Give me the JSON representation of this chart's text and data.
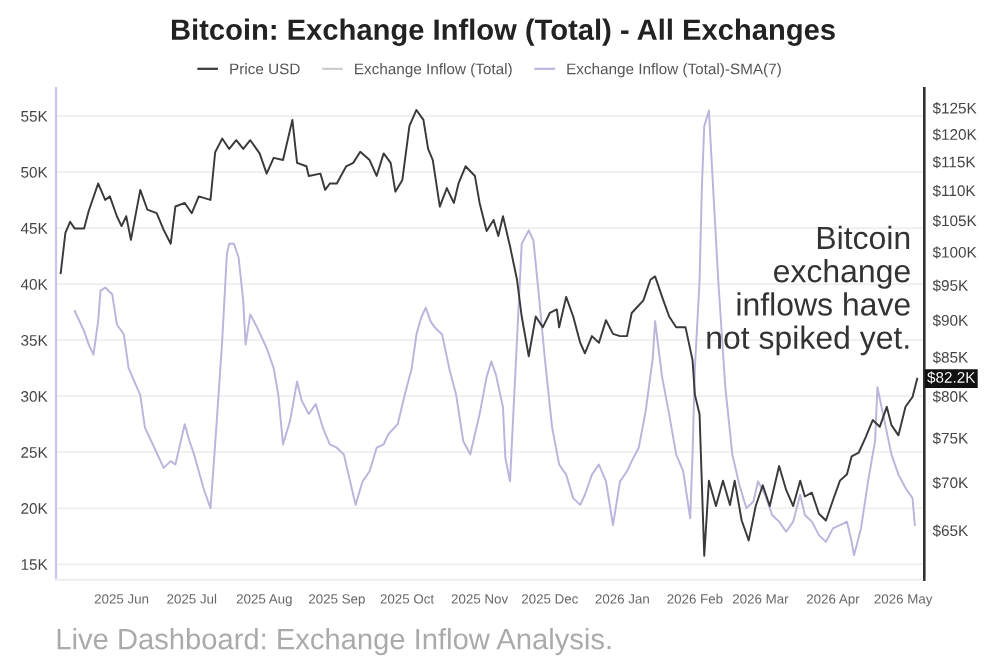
{
  "chart_data": {
    "type": "line",
    "title": "Bitcoin: Exchange Inflow (Total) - All Exchanges",
    "legend": "top",
    "grid": "y",
    "log": "y2",
    "line_style": "solid",
    "xlim": [
      "2025-05-04",
      "2026-05-10"
    ],
    "xticks": [
      {
        "value": "2025-06-01",
        "label": "2025 Jun"
      },
      {
        "value": "2025-07-01",
        "label": "2025 Jul"
      },
      {
        "value": "2025-08-01",
        "label": "2025 Aug"
      },
      {
        "value": "2025-09-01",
        "label": "2025 Sep"
      },
      {
        "value": "2025-10-01",
        "label": "2025 Oct"
      },
      {
        "value": "2025-11-01",
        "label": "2025 Nov"
      },
      {
        "value": "2025-12-01",
        "label": "2025 Dec"
      },
      {
        "value": "2026-01-01",
        "label": "2026 Jan"
      },
      {
        "value": "2026-02-01",
        "label": "2026 Feb"
      },
      {
        "value": "2026-03-01",
        "label": "2026 Mar"
      },
      {
        "value": "2026-04-01",
        "label": "2026 Apr"
      },
      {
        "value": "2026-05-01",
        "label": "2026 May"
      }
    ],
    "ylim": [
      13.6,
      57.5
    ],
    "yticks": [
      {
        "value": 15,
        "label": "15K"
      },
      {
        "value": 20,
        "label": "20K"
      },
      {
        "value": 25,
        "label": "25K"
      },
      {
        "value": 30,
        "label": "30K"
      },
      {
        "value": 35,
        "label": "35K"
      },
      {
        "value": 40,
        "label": "40K"
      },
      {
        "value": 45,
        "label": "45K"
      },
      {
        "value": 50,
        "label": "50K"
      },
      {
        "value": 55,
        "label": "55K"
      }
    ],
    "y2lim": [
      60.2,
      128.9
    ],
    "y2ticks": [
      {
        "value": 65,
        "label": "$65K"
      },
      {
        "value": 70,
        "label": "$70K"
      },
      {
        "value": 75,
        "label": "$75K"
      },
      {
        "value": 80,
        "label": "$80K"
      },
      {
        "value": 85,
        "label": "$85K"
      },
      {
        "value": 90,
        "label": "$90K"
      },
      {
        "value": 95,
        "label": "$95K"
      },
      {
        "value": 100,
        "label": "$100K"
      },
      {
        "value": 105,
        "label": "$105K"
      },
      {
        "value": 110,
        "label": "$110K"
      },
      {
        "value": 115,
        "label": "$115K"
      },
      {
        "value": 120,
        "label": "$120K"
      },
      {
        "value": 125,
        "label": "$125K"
      }
    ],
    "series": [
      {
        "name": "Price USD",
        "color": "#3a3a3a",
        "axis": "y2",
        "x": [
          "2025-05-06",
          "2025-05-08",
          "2025-05-10",
          "2025-05-12",
          "2025-05-16",
          "2025-05-18",
          "2025-05-22",
          "2025-05-25",
          "2025-05-27",
          "2025-05-30",
          "2025-06-01",
          "2025-06-03",
          "2025-06-05",
          "2025-06-09",
          "2025-06-12",
          "2025-06-16",
          "2025-06-19",
          "2025-06-22",
          "2025-06-24",
          "2025-06-28",
          "2025-07-01",
          "2025-07-04",
          "2025-07-09",
          "2025-07-11",
          "2025-07-14",
          "2025-07-17",
          "2025-07-20",
          "2025-07-23",
          "2025-07-26",
          "2025-07-30",
          "2025-08-02",
          "2025-08-05",
          "2025-08-09",
          "2025-08-13",
          "2025-08-15",
          "2025-08-19",
          "2025-08-20",
          "2025-08-25",
          "2025-08-27",
          "2025-08-29",
          "2025-09-01",
          "2025-09-05",
          "2025-09-08",
          "2025-09-11",
          "2025-09-15",
          "2025-09-18",
          "2025-09-21",
          "2025-09-24",
          "2025-09-26",
          "2025-09-29",
          "2025-10-02",
          "2025-10-05",
          "2025-10-08",
          "2025-10-10",
          "2025-10-12",
          "2025-10-15",
          "2025-10-18",
          "2025-10-21",
          "2025-10-23",
          "2025-10-26",
          "2025-10-30",
          "2025-11-01",
          "2025-11-04",
          "2025-11-07",
          "2025-11-09",
          "2025-11-11",
          "2025-11-14",
          "2025-11-17",
          "2025-11-19",
          "2025-11-22",
          "2025-11-25",
          "2025-11-28",
          "2025-12-01",
          "2025-12-04",
          "2025-12-05",
          "2025-12-08",
          "2025-12-11",
          "2025-12-14",
          "2025-12-16",
          "2025-12-19",
          "2025-12-22",
          "2025-12-25",
          "2025-12-28",
          "2025-12-31",
          "2026-01-03",
          "2026-01-05",
          "2026-01-10",
          "2026-01-13",
          "2026-01-15",
          "2026-01-18",
          "2026-01-21",
          "2026-01-24",
          "2026-01-28",
          "2026-01-31",
          "2026-02-01",
          "2026-02-03",
          "2026-02-05",
          "2026-02-07",
          "2026-02-10",
          "2026-02-13",
          "2026-02-16",
          "2026-02-18",
          "2026-02-21",
          "2026-02-24",
          "2026-02-27",
          "2026-03-02",
          "2026-03-05",
          "2026-03-09",
          "2026-03-12",
          "2026-03-15",
          "2026-03-18",
          "2026-03-20",
          "2026-03-23",
          "2026-03-26",
          "2026-03-29",
          "2026-04-01",
          "2026-04-04",
          "2026-04-07",
          "2026-04-09",
          "2026-04-12",
          "2026-04-15",
          "2026-04-18",
          "2026-04-21",
          "2026-04-24",
          "2026-04-26",
          "2026-04-29",
          "2026-05-02",
          "2026-05-05",
          "2026-05-07"
        ],
        "values": [
          96.8,
          103,
          104.8,
          103.7,
          103.7,
          106.6,
          111.2,
          108.4,
          109,
          105.7,
          104.1,
          105.7,
          101.9,
          110.1,
          106.8,
          106.2,
          103.5,
          101.3,
          107.3,
          107.9,
          106.2,
          109,
          108.4,
          116.7,
          119.2,
          117.3,
          118.9,
          117.3,
          118.9,
          116.5,
          112.9,
          115.7,
          115.3,
          122.7,
          114.8,
          114.2,
          112.5,
          112.9,
          110.1,
          111.2,
          111.2,
          114.2,
          114.8,
          116.8,
          115.3,
          112.5,
          116.5,
          114.8,
          109.8,
          111.8,
          121.5,
          124.6,
          122.7,
          117.3,
          115.3,
          107.3,
          110.4,
          107.9,
          111.2,
          114.2,
          112.5,
          107.9,
          103.3,
          105.1,
          102.5,
          105.7,
          100.9,
          95.8,
          90.5,
          85.1,
          90.5,
          89,
          91,
          91.5,
          89,
          93.3,
          90.5,
          86.9,
          85.5,
          87.8,
          86.9,
          90,
          88.1,
          87.8,
          87.8,
          91,
          92.8,
          95.8,
          96.3,
          93.3,
          90.5,
          89,
          89,
          84.6,
          80.2,
          77.8,
          62.5,
          70.2,
          67.5,
          70.2,
          67.6,
          70.2,
          66,
          64,
          67.5,
          69.7,
          67.5,
          71.8,
          69.2,
          67.5,
          70.2,
          68.5,
          68.9,
          66.7,
          66,
          68.1,
          70.2,
          70.9,
          72.9,
          73.3,
          75.1,
          77.1,
          76.3,
          78.7,
          76.5,
          75.3,
          78.7,
          79.9,
          82.2
        ],
        "value_labels": [
          null,
          null,
          null,
          null,
          null,
          null,
          null,
          null,
          null,
          null,
          null,
          null,
          null,
          null,
          null,
          null,
          null,
          null,
          null,
          null,
          null,
          null,
          null,
          null,
          null,
          null,
          null,
          null,
          null,
          null,
          null,
          null,
          null,
          null,
          null,
          null,
          null,
          null,
          null,
          null,
          null,
          null,
          null,
          null,
          null,
          null,
          null,
          null,
          null,
          null,
          null,
          null,
          null,
          null,
          null,
          null,
          null,
          null,
          null,
          null,
          null,
          null,
          null,
          null,
          null,
          null,
          null,
          null,
          null,
          null,
          null,
          null,
          null,
          null,
          null,
          null,
          null,
          null,
          null,
          null,
          null,
          null,
          null,
          null,
          null,
          null,
          null,
          null,
          null,
          null,
          null,
          null,
          null,
          null,
          null,
          null,
          null,
          null,
          null,
          null,
          null,
          null,
          null,
          null,
          null,
          null,
          null,
          null,
          null,
          null,
          null,
          null,
          null,
          null,
          null,
          null,
          null,
          null,
          null,
          null,
          null,
          null,
          null,
          null,
          null,
          null,
          null,
          null,
          "$82.2K"
        ]
      },
      {
        "name": "Exchange Inflow (Total)",
        "color": "#cccccc"
      },
      {
        "name": "Exchange Inflow (Total)-SMA(7)",
        "color": "#b9b5dc",
        "x": [
          "2025-05-12",
          "2025-05-16",
          "2025-05-18",
          "2025-05-20",
          "2025-05-22",
          "2025-05-23",
          "2025-05-25",
          "2025-05-28",
          "2025-05-30",
          "2025-06-02",
          "2025-06-04",
          "2025-06-09",
          "2025-06-11",
          "2025-06-15",
          "2025-06-19",
          "2025-06-22",
          "2025-06-24",
          "2025-06-26",
          "2025-06-28",
          "2025-06-30",
          "2025-07-02",
          "2025-07-06",
          "2025-07-09",
          "2025-07-11",
          "2025-07-14",
          "2025-07-16",
          "2025-07-17",
          "2025-07-19",
          "2025-07-21",
          "2025-07-23",
          "2025-07-24",
          "2025-07-26",
          "2025-07-29",
          "2025-08-02",
          "2025-08-05",
          "2025-08-07",
          "2025-08-09",
          "2025-08-12",
          "2025-08-15",
          "2025-08-17",
          "2025-08-20",
          "2025-08-23",
          "2025-08-26",
          "2025-08-29",
          "2025-09-01",
          "2025-09-04",
          "2025-09-06",
          "2025-09-09",
          "2025-09-12",
          "2025-09-15",
          "2025-09-18",
          "2025-09-21",
          "2025-09-23",
          "2025-09-27",
          "2025-09-30",
          "2025-10-03",
          "2025-10-05",
          "2025-10-07",
          "2025-10-09",
          "2025-10-11",
          "2025-10-13",
          "2025-10-16",
          "2025-10-19",
          "2025-10-22",
          "2025-10-25",
          "2025-10-28",
          "2025-10-30",
          "2025-11-01",
          "2025-11-04",
          "2025-11-06",
          "2025-11-08",
          "2025-11-11",
          "2025-11-12",
          "2025-11-14",
          "2025-11-19",
          "2025-11-22",
          "2025-11-24",
          "2025-11-26",
          "2025-11-29",
          "2025-12-02",
          "2025-12-05",
          "2025-12-08",
          "2025-12-11",
          "2025-12-14",
          "2025-12-16",
          "2025-12-19",
          "2025-12-22",
          "2025-12-25",
          "2025-12-28",
          "2025-12-31",
          "2026-01-03",
          "2026-01-05",
          "2026-01-08",
          "2026-01-11",
          "2026-01-14",
          "2026-01-15",
          "2026-01-18",
          "2026-01-21",
          "2026-01-24",
          "2026-01-27",
          "2026-01-30",
          "2026-01-31",
          "2026-02-01",
          "2026-02-03",
          "2026-02-04",
          "2026-02-05",
          "2026-02-07",
          "2026-02-08",
          "2026-02-11",
          "2026-02-14",
          "2026-02-17",
          "2026-02-20",
          "2026-02-23",
          "2026-02-26",
          "2026-02-28",
          "2026-03-03",
          "2026-03-06",
          "2026-03-09",
          "2026-03-12",
          "2026-03-15",
          "2026-03-18",
          "2026-03-20",
          "2026-03-23",
          "2026-03-26",
          "2026-03-29",
          "2026-04-01",
          "2026-04-04",
          "2026-04-07",
          "2026-04-09",
          "2026-04-10",
          "2026-04-13",
          "2026-04-16",
          "2026-04-19",
          "2026-04-20",
          "2026-04-23",
          "2026-04-26",
          "2026-04-29",
          "2026-05-02",
          "2026-05-05",
          "2026-05-06"
        ],
        "values": [
          37.6,
          35.8,
          34.6,
          33.7,
          36.7,
          39.4,
          39.7,
          39.1,
          36.4,
          35.5,
          32.5,
          30.1,
          27.2,
          25.4,
          23.6,
          24.2,
          23.9,
          25.7,
          27.5,
          26,
          24.8,
          21.8,
          20,
          25.7,
          34.9,
          42.7,
          43.6,
          43.6,
          42.4,
          38.5,
          34.6,
          37.3,
          36.1,
          34.3,
          32.5,
          30.1,
          25.7,
          27.8,
          31.3,
          29.6,
          28.4,
          29.3,
          27.2,
          25.7,
          25.4,
          24.8,
          23,
          20.3,
          22.4,
          23.3,
          25.4,
          25.7,
          26.6,
          27.5,
          30.1,
          32.5,
          35.5,
          37,
          37.9,
          36.7,
          36.1,
          35.5,
          32.5,
          30.1,
          26,
          24.8,
          26.6,
          28.4,
          31.7,
          33.1,
          31.9,
          29,
          24.5,
          22.4,
          43.6,
          44.8,
          43.9,
          39.7,
          33.1,
          27.2,
          23.9,
          23,
          20.9,
          20.3,
          21.2,
          23,
          23.9,
          22.4,
          18.5,
          22.4,
          23.3,
          24.2,
          25.4,
          28.7,
          33.4,
          36.7,
          31.7,
          28.4,
          24.8,
          23.3,
          19.1,
          24.8,
          32.5,
          40.3,
          48.7,
          54.1,
          55.5,
          51.6,
          40.3,
          30.8,
          24.8,
          22.1,
          20,
          20.6,
          22.4,
          21.2,
          19.4,
          18.8,
          17.9,
          18.8,
          21.2,
          19.4,
          18.8,
          17.6,
          17,
          18.2,
          18.5,
          18.8,
          17,
          15.8,
          18.2,
          22.4,
          26,
          30.8,
          27.8,
          24.8,
          23,
          21.8,
          20.9,
          18.5
        ]
      }
    ],
    "annotations": [
      "Bitcoin\nexchange\ninflows have\nnot spiked yet.",
      "Live Dashboard: Exchange Inflow Analysis."
    ]
  }
}
